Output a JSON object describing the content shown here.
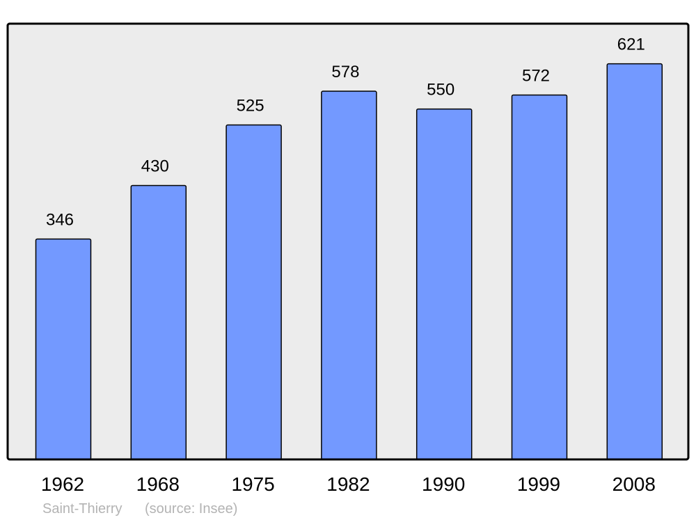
{
  "chart_data": {
    "type": "bar",
    "categories": [
      "1962",
      "1968",
      "1975",
      "1982",
      "1990",
      "1999",
      "2008"
    ],
    "values": [
      346,
      430,
      525,
      578,
      550,
      572,
      621
    ],
    "title": "",
    "xlabel": "",
    "ylabel": "",
    "ylim": [
      0,
      684
    ],
    "grid": false,
    "data_labels": true,
    "colors": {
      "bar": "#7399ff",
      "plot_background": "#ececec",
      "border": "#000000",
      "footer_text": "#b3b3b3"
    }
  },
  "footer": {
    "place": "Saint-Thierry",
    "source": "(source: Insee)"
  }
}
